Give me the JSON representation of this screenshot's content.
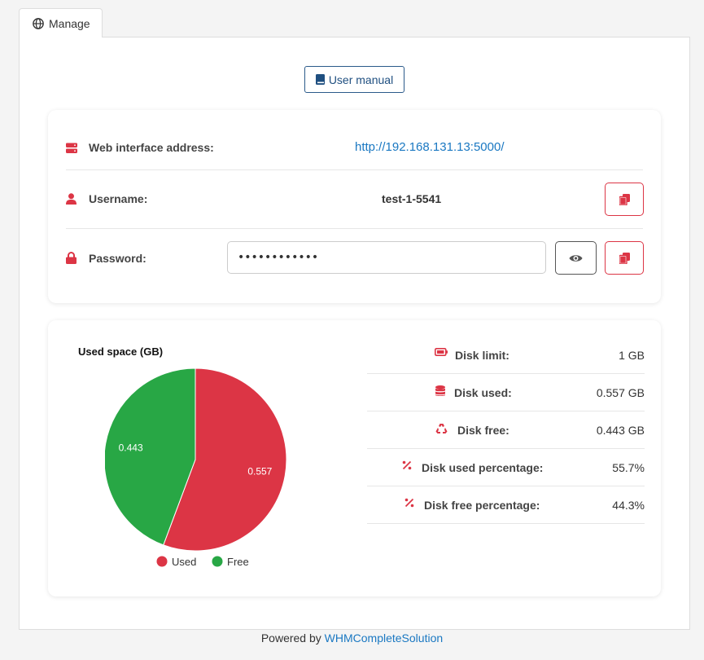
{
  "tab": {
    "label": "Manage",
    "icon": "globe-icon"
  },
  "manual_button": {
    "label": "User manual",
    "icon": "book-icon"
  },
  "info": {
    "web": {
      "label": "Web interface address:",
      "value": "http://192.168.131.13:5000/",
      "icon": "server-icon"
    },
    "user": {
      "label": "Username:",
      "value": "test-1-5541",
      "icon": "user-icon"
    },
    "password": {
      "label": "Password:",
      "value": "••••••••••••",
      "icon": "lock-icon"
    }
  },
  "stats": [
    {
      "label": "Disk limit:",
      "value": "1 GB",
      "icon": "battery-icon"
    },
    {
      "label": "Disk used:",
      "value": "0.557 GB",
      "icon": "database-icon"
    },
    {
      "label": "Disk free:",
      "value": "0.443 GB",
      "icon": "recycle-icon"
    },
    {
      "label": "Disk used percentage:",
      "value": "55.7%",
      "icon": "percent-icon"
    },
    {
      "label": "Disk free percentage:",
      "value": "44.3%",
      "icon": "percent-icon"
    }
  ],
  "chart_data": {
    "type": "pie",
    "title": "Used space (GB)",
    "categories": [
      "Used",
      "Free"
    ],
    "values": [
      0.557,
      0.443
    ],
    "data_labels": [
      "0.557",
      "0.443"
    ],
    "colors": [
      "#dc3545",
      "#28a745"
    ],
    "legend": "bottom"
  },
  "footer": {
    "prefix": "Powered by",
    "link": "WHMCompleteSolution"
  },
  "colors": {
    "accent_red": "#dc3545",
    "link_blue": "#1a78c2",
    "free_green": "#28a745"
  }
}
